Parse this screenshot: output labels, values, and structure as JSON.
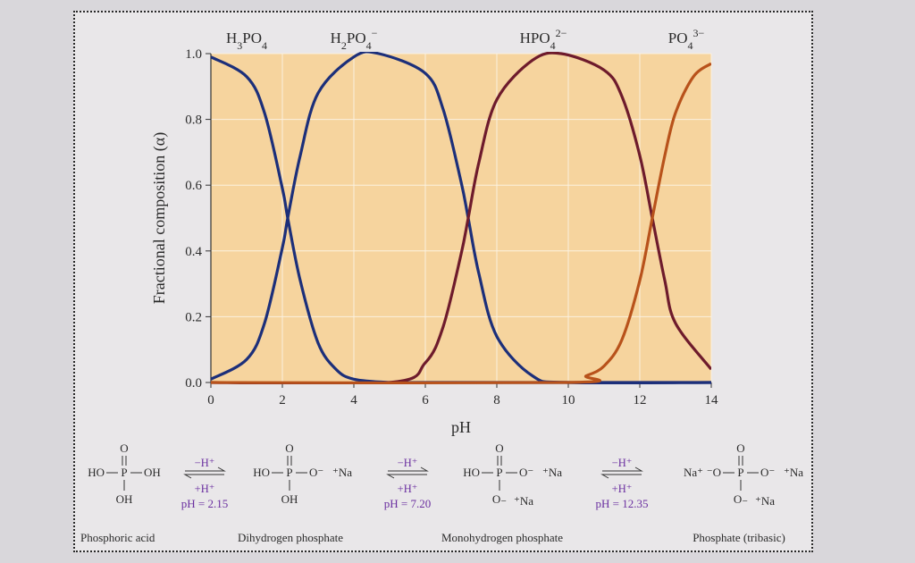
{
  "chart_data": {
    "type": "line",
    "xlabel": "pH",
    "ylabel": "Fractional composition (α)",
    "xlim": [
      0,
      14
    ],
    "ylim": [
      0,
      1.0
    ],
    "x_ticks": [
      "0",
      "2",
      "4",
      "6",
      "8",
      "10",
      "12",
      "14"
    ],
    "y_ticks": [
      "0.0",
      "0.2",
      "0.4",
      "0.6",
      "0.8",
      "1.0"
    ],
    "grid": true,
    "background": "#f6d49e",
    "pKa": [
      2.15,
      7.2,
      12.35
    ],
    "series": [
      {
        "name": "H3PO4",
        "color": "#1c2f7a",
        "x": [
          0,
          1,
          1.5,
          2,
          2.15,
          2.5,
          3,
          3.5,
          4,
          5,
          6,
          14
        ],
        "y": [
          0.99,
          0.93,
          0.82,
          0.59,
          0.5,
          0.31,
          0.12,
          0.04,
          0.01,
          0.0,
          0.0,
          0.0
        ]
      },
      {
        "name": "H2PO4−",
        "color": "#1c2f7a",
        "x": [
          0,
          1,
          1.5,
          2,
          2.15,
          2.5,
          3,
          4,
          4.7,
          6,
          6.5,
          7,
          7.2,
          7.5,
          8,
          9,
          10,
          14
        ],
        "y": [
          0.01,
          0.07,
          0.18,
          0.41,
          0.5,
          0.69,
          0.88,
          0.99,
          1.0,
          0.94,
          0.83,
          0.61,
          0.5,
          0.33,
          0.14,
          0.02,
          0.0,
          0.0
        ]
      },
      {
        "name": "HPO4 2−",
        "color": "#6e1b2c",
        "x": [
          0,
          5,
          6,
          6.5,
          7,
          7.2,
          7.5,
          8,
          9,
          9.8,
          11,
          11.5,
          12,
          12.35,
          12.7,
          13,
          14
        ],
        "y": [
          0.0,
          0.0,
          0.06,
          0.17,
          0.39,
          0.5,
          0.67,
          0.86,
          0.98,
          1.0,
          0.95,
          0.87,
          0.69,
          0.5,
          0.31,
          0.18,
          0.04
        ]
      },
      {
        "name": "PO4 3−",
        "color": "#b8521b",
        "x": [
          0,
          10,
          10.5,
          11,
          11.5,
          12,
          12.35,
          12.7,
          13,
          13.5,
          14
        ],
        "y": [
          0.0,
          0.0,
          0.02,
          0.05,
          0.13,
          0.31,
          0.5,
          0.69,
          0.82,
          0.93,
          0.97
        ]
      }
    ]
  },
  "species_headers": [
    {
      "main": "H",
      "sub1": "3",
      "mid": "PO",
      "sub2": "4",
      "sup": ""
    },
    {
      "main": "H",
      "sub1": "2",
      "mid": "PO",
      "sub2": "4",
      "sup": "−"
    },
    {
      "main": "HPO",
      "sub1": "4",
      "mid": "",
      "sub2": "",
      "sup": "2−"
    },
    {
      "main": "PO",
      "sub1": "4",
      "mid": "",
      "sub2": "",
      "sup": "3−"
    }
  ],
  "scheme": {
    "compounds": [
      {
        "name": "Phosphoric acid",
        "left": "HO",
        "right": "OH",
        "top": "O",
        "bottom": "OH",
        "center": "P",
        "right_ion": "",
        "bottom_ion": "",
        "left_ion": ""
      },
      {
        "name": "Dihydrogen phosphate",
        "left": "HO",
        "right": "O⁻",
        "top": "O",
        "bottom": "OH",
        "center": "P",
        "right_ion": "⁺Na",
        "bottom_ion": "",
        "left_ion": ""
      },
      {
        "name": "Monohydrogen phosphate",
        "left": "HO",
        "right": "O⁻",
        "top": "O",
        "bottom": "O₋",
        "center": "P",
        "right_ion": "⁺Na",
        "bottom_ion": "⁺Na",
        "left_ion": ""
      },
      {
        "name": "Phosphate (tribasic)",
        "left": "⁻O",
        "right": "O⁻",
        "top": "O",
        "bottom": "O₋",
        "center": "P",
        "right_ion": "⁺Na",
        "bottom_ion": "⁺Na",
        "left_ion": "Na⁺"
      }
    ],
    "equilibria": [
      {
        "forward": "−H⁺",
        "reverse": "+H⁺",
        "ph": "pH = 2.15"
      },
      {
        "forward": "−H⁺",
        "reverse": "+H⁺",
        "ph": "pH = 7.20"
      },
      {
        "forward": "−H⁺",
        "reverse": "+H⁺",
        "ph": "pH = 12.35"
      }
    ]
  }
}
